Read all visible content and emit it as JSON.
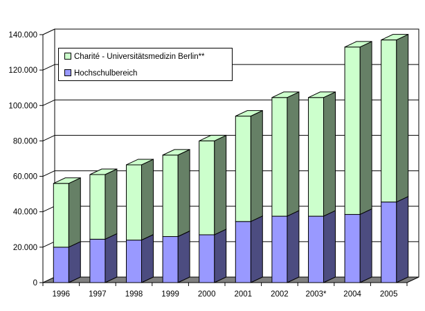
{
  "chart_data": {
    "type": "bar",
    "stacked": true,
    "three_d": true,
    "categories": [
      "1996",
      "1997",
      "1998",
      "1999",
      "2000",
      "2001",
      "2002",
      "2003*",
      "2004",
      "2005"
    ],
    "series": [
      {
        "name": "Hochschulbereich",
        "values": [
          20000,
          24500,
          24000,
          26000,
          27000,
          34500,
          37500,
          37500,
          38500,
          45500
        ]
      },
      {
        "name": "Charité - Universitätsmedizin Berlin**",
        "values": [
          36000,
          36500,
          42500,
          46000,
          53000,
          59500,
          67000,
          67000,
          94500,
          91500
        ]
      }
    ],
    "y_ticks": [
      "0",
      "20.000",
      "40.000",
      "60.000",
      "80.000",
      "100.000",
      "120.000",
      "140.000"
    ],
    "ylim": [
      0,
      140000
    ],
    "grid": true,
    "legend_position": "top-left",
    "title": "",
    "xlabel": "",
    "ylabel": ""
  },
  "colors": {
    "hochschul_front": "#9999ff",
    "hochschul_side": "#4c4c80",
    "charite_front": "#ccffcc",
    "charite_side": "#668066",
    "wall": "#ffffff",
    "floor": "#808080",
    "gridline": "#000000"
  },
  "legend": {
    "items": [
      {
        "label": "Charité - Universitätsmedizin Berlin**",
        "color": "#ccffcc"
      },
      {
        "label": "Hochschulbereich",
        "color": "#9999ff"
      }
    ]
  }
}
